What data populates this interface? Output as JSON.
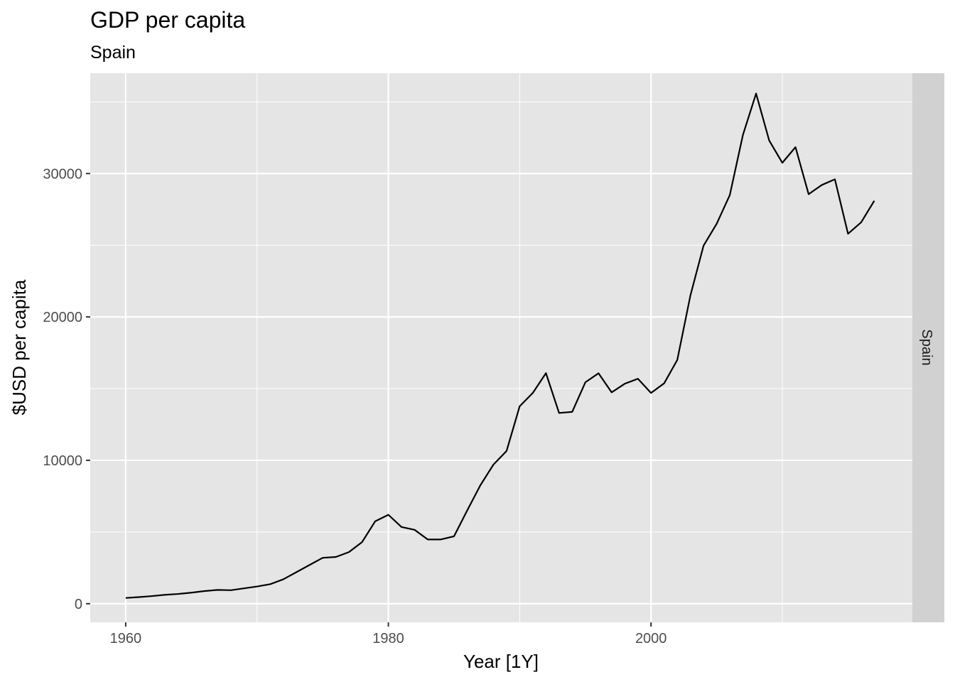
{
  "chart_data": {
    "type": "line",
    "title": "GDP per capita",
    "subtitle": "Spain",
    "xlabel": "Year [1Y]",
    "ylabel": "$USD per capita",
    "facet_label": "Spain",
    "xlim": [
      1957.3,
      2019.9
    ],
    "ylim": [
      -1300,
      37000
    ],
    "x_ticks": [
      1960,
      1980,
      2000
    ],
    "x_minor_ticks": [
      1970,
      1990,
      2010
    ],
    "y_ticks": [
      0,
      10000,
      20000,
      30000
    ],
    "y_minor_ticks": [
      5000,
      15000,
      25000,
      35000
    ],
    "grid": true,
    "series": [
      {
        "x": [
          1960,
          1961,
          1962,
          1963,
          1964,
          1965,
          1966,
          1967,
          1968,
          1969,
          1970,
          1971,
          1972,
          1973,
          1974,
          1975,
          1976,
          1977,
          1978,
          1979,
          1980,
          1981,
          1982,
          1983,
          1984,
          1985,
          1986,
          1987,
          1988,
          1989,
          1990,
          1991,
          1992,
          1993,
          1994,
          1995,
          1996,
          1997,
          1998,
          1999,
          2000,
          2001,
          2002,
          2003,
          2004,
          2005,
          2006,
          2007,
          2008,
          2009,
          2010,
          2011,
          2012,
          2013,
          2014,
          2015,
          2016,
          2017
        ],
        "y": [
          400,
          460,
          530,
          620,
          680,
          770,
          880,
          960,
          940,
          1070,
          1200,
          1360,
          1700,
          2200,
          2700,
          3200,
          3260,
          3600,
          4300,
          5750,
          6200,
          5350,
          5150,
          4480,
          4480,
          4700,
          6500,
          8250,
          9700,
          10650,
          13770,
          14700,
          16080,
          13300,
          13380,
          15440,
          16070,
          14740,
          15340,
          15690,
          14700,
          15370,
          17000,
          21500,
          24970,
          26500,
          28500,
          32700,
          35580,
          32300,
          30750,
          31840,
          28560,
          29200,
          29600,
          25800,
          26600,
          28100
        ]
      }
    ],
    "colors": {
      "panel_background": "#e5e5e5",
      "grid_major": "#ffffff",
      "strip_background": "#d1d1d1",
      "line": "#000000"
    }
  }
}
